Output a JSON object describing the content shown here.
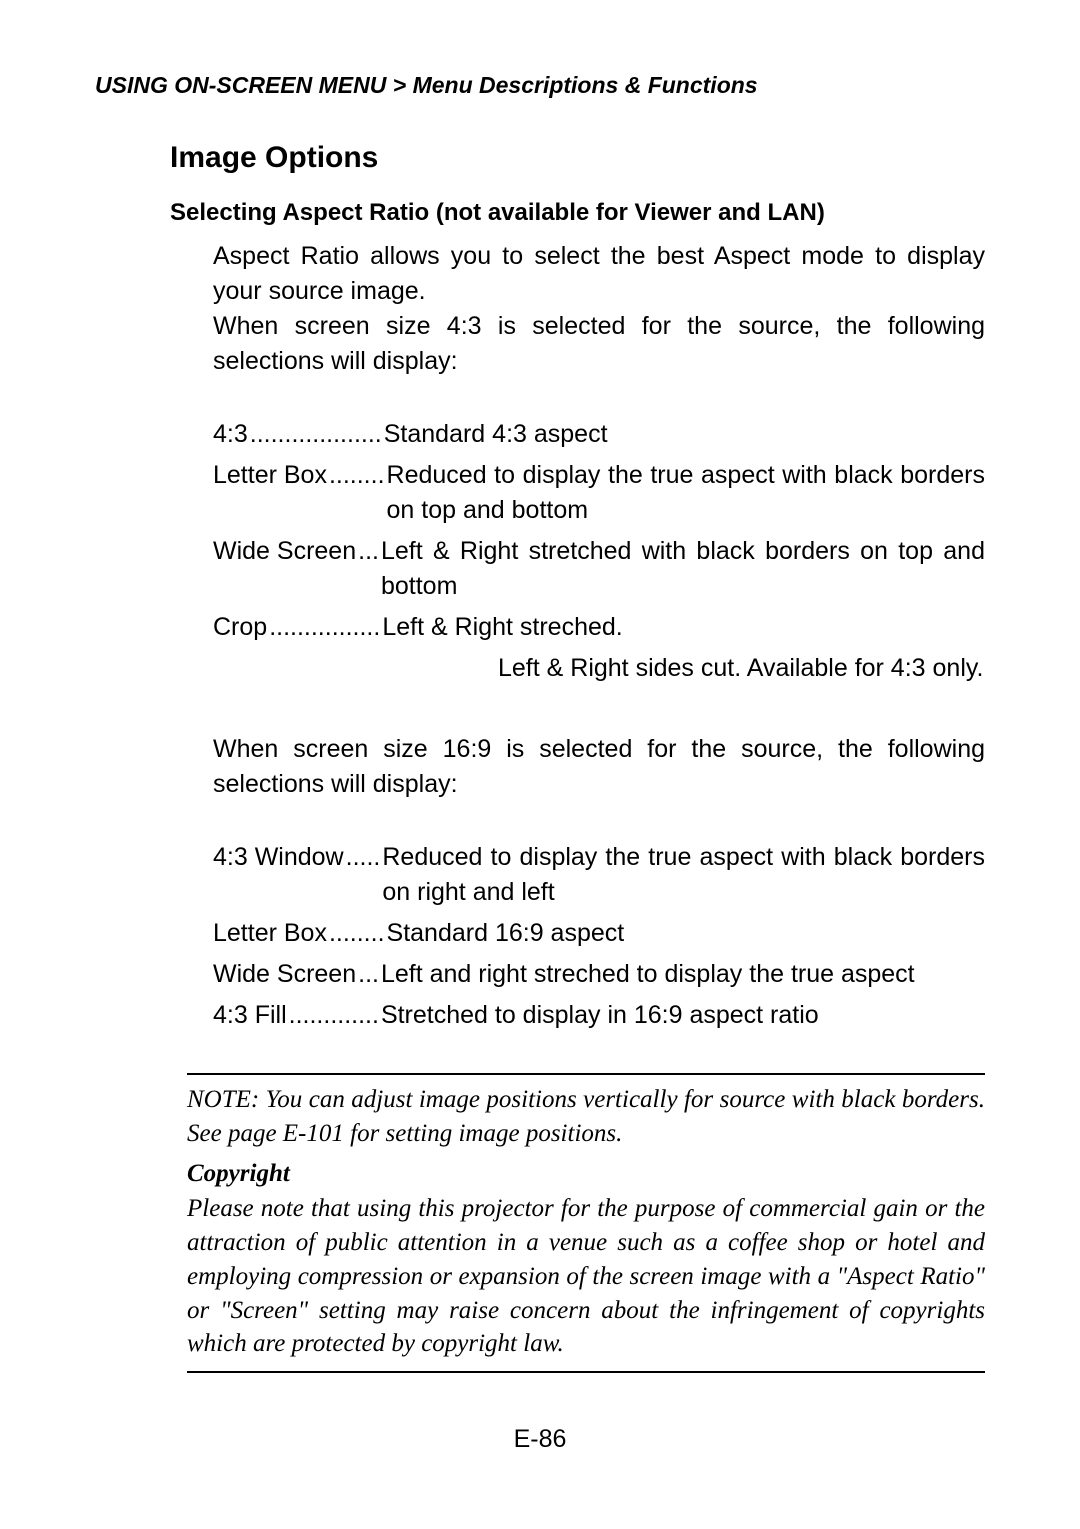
{
  "page": {
    "breadcrumb": "USING ON-SCREEN MENU > Menu Descriptions & Functions",
    "section_title": "Image Options",
    "subsection_title": "Selecting Aspect Ratio (not available for Viewer and LAN)",
    "intro1": "Aspect Ratio allows you to select the best Aspect mode to display your source image.",
    "intro2": "When screen size 4:3 is selected for the source, the following selections will display:",
    "defs43": [
      {
        "term": "4:3",
        "dots": "...................",
        "desc": "Standard 4:3 aspect"
      },
      {
        "term": "Letter Box",
        "dots": "........",
        "desc": "Reduced to display the true aspect with black borders on top and bottom"
      },
      {
        "term": "Wide Screen",
        "dots": "...",
        "desc": "Left & Right stretched with black borders on top and bottom"
      },
      {
        "term": "Crop",
        "dots": "................",
        "desc": "Left & Right streched."
      }
    ],
    "crop_extra": "Left & Right sides cut. Available for 4:3 only.",
    "intro3": "When screen size 16:9 is selected for the source, the following selections will display:",
    "defs169": [
      {
        "term": "4:3 Window",
        "dots": ".....",
        "desc": "Reduced to display the true aspect with black borders on right and left"
      },
      {
        "term": "Letter Box",
        "dots": "........",
        "desc": "Standard 16:9 aspect"
      },
      {
        "term": "Wide Screen",
        "dots": "...",
        "desc": "Left and right streched to display the true aspect"
      },
      {
        "term": "4:3 Fill",
        "dots": ".............",
        "desc": "Stretched to display in 16:9 aspect ratio"
      }
    ],
    "note_line1": "NOTE: You can adjust image positions vertically for source with black borders. See page E-101 for setting image positions.",
    "note_heading": "Copyright",
    "note_body": "Please note that using this projector for the purpose of commercial gain or the attraction of public attention in a venue such as a coffee shop or hotel and employing compression or expansion of the screen image with a \"Aspect Ratio\" or \"Screen\" setting may raise concern about the infringement of copyrights which are protected by copyright law.",
    "page_number": "E-86"
  },
  "style": {
    "background_color": "#ffffff",
    "text_color": "#000000",
    "body_fontsize": 25,
    "breadcrumb_fontsize": 23,
    "section_title_fontsize": 30,
    "subsection_title_fontsize": 24,
    "note_fontsize": 25
  }
}
